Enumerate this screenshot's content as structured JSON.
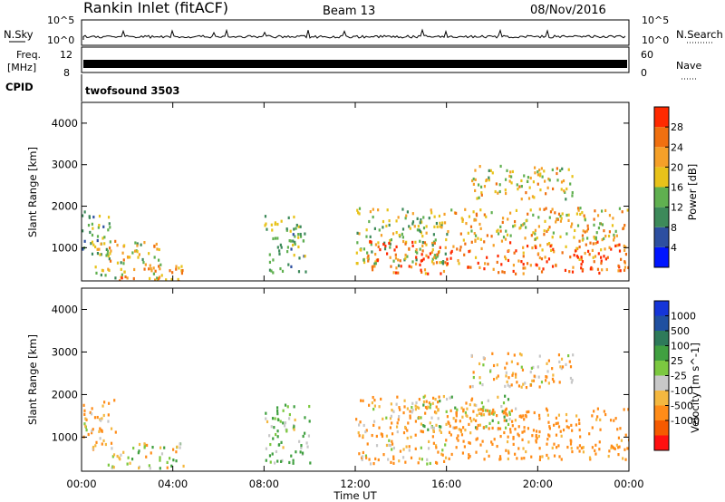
{
  "header": {
    "station": "Rankin Inlet (fitACF)",
    "beam": "Beam 13",
    "date": "08/Nov/2016"
  },
  "noise_panel": {
    "left_label": "N.Sky",
    "right_label": "N.Search",
    "ticks_left": [
      "10^5",
      "10^0"
    ],
    "ticks_right": [
      "10^5",
      "10^0"
    ]
  },
  "freq_panel": {
    "left_label": "Freq.",
    "left_unit": "[MHz]",
    "right_label": "Nave",
    "ticks_left": [
      "12",
      "8"
    ],
    "ticks_right": [
      "60",
      "0"
    ]
  },
  "cpid_panel": {
    "label": "CPID",
    "value": "twofsound 3503"
  },
  "x_axis": {
    "title": "Time UT",
    "ticks": [
      "00:00",
      "04:00",
      "08:00",
      "12:00",
      "16:00",
      "20:00",
      "00:00"
    ]
  },
  "colors": {
    "power": [
      "#0015ff",
      "#2d4fa0",
      "#3d8a5a",
      "#60b050",
      "#e8c21a",
      "#f5a028",
      "#f07010",
      "#ff2a00"
    ],
    "velocity": [
      "#ff1010",
      "#f55a00",
      "#ff8c18",
      "#f4b840",
      "#c8c8c8",
      "#7cc840",
      "#40a040",
      "#2e7a5a",
      "#2050a0",
      "#1535d8"
    ]
  },
  "chart_data": [
    {
      "type": "heatmap",
      "name_panel": "power",
      "ylabel": "Slant Range [km]",
      "yticks": [
        "1000",
        "2000",
        "3000",
        "4000"
      ],
      "ylim": [
        200,
        4500
      ],
      "xlim": [
        "00:00",
        "24:00"
      ],
      "colorbar": {
        "label": "Power [dB]",
        "ticks": [
          "28",
          "24",
          "20",
          "16",
          "12",
          "8",
          "4"
        ],
        "range": [
          0,
          32
        ]
      },
      "regions": [
        {
          "t0": 0.0,
          "t1": 1.3,
          "r0": 700,
          "r1": 1900,
          "value": 12
        },
        {
          "t0": 0.5,
          "t1": 3.5,
          "r0": 300,
          "r1": 1200,
          "value": 18
        },
        {
          "t0": 1.5,
          "t1": 4.5,
          "r0": 200,
          "r1": 600,
          "value": 24
        },
        {
          "t0": 8.0,
          "t1": 9.8,
          "r0": 400,
          "r1": 1800,
          "value": 14
        },
        {
          "t0": 12.0,
          "t1": 16.0,
          "r0": 600,
          "r1": 2000,
          "value": 16
        },
        {
          "t0": 12.5,
          "t1": 24.0,
          "r0": 400,
          "r1": 1200,
          "value": 26
        },
        {
          "t0": 16.0,
          "t1": 24.0,
          "r0": 1200,
          "r1": 2000,
          "value": 20
        },
        {
          "t0": 17.0,
          "t1": 21.5,
          "r0": 2200,
          "r1": 3000,
          "value": 18
        }
      ]
    },
    {
      "type": "heatmap",
      "name_panel": "velocity",
      "ylabel": "Slant Range [km]",
      "yticks": [
        "1000",
        "2000",
        "3000",
        "4000"
      ],
      "ylim": [
        200,
        4500
      ],
      "xlim": [
        "00:00",
        "24:00"
      ],
      "colorbar": {
        "label": "Velocity [m s^-1]",
        "ticks": [
          "1000",
          "500",
          "100",
          "25",
          "-25",
          "-100",
          "-500",
          "-1000"
        ],
        "range": [
          -1000,
          1000
        ]
      },
      "regions": [
        {
          "t0": 0.0,
          "t1": 1.5,
          "r0": 700,
          "r1": 1900,
          "value": -100
        },
        {
          "t0": 1.0,
          "t1": 4.5,
          "r0": 300,
          "r1": 900,
          "value": 0
        },
        {
          "t0": 8.0,
          "t1": 10.0,
          "r0": 400,
          "r1": 1800,
          "value": 100
        },
        {
          "t0": 12.0,
          "t1": 16.0,
          "r0": 400,
          "r1": 2000,
          "value": -100
        },
        {
          "t0": 14.5,
          "t1": 19.0,
          "r0": 1200,
          "r1": 2000,
          "value": 0
        },
        {
          "t0": 16.0,
          "t1": 24.0,
          "r0": 500,
          "r1": 1700,
          "value": -200
        },
        {
          "t0": 17.0,
          "t1": 21.5,
          "r0": 2200,
          "r1": 3000,
          "value": -100
        }
      ]
    }
  ]
}
